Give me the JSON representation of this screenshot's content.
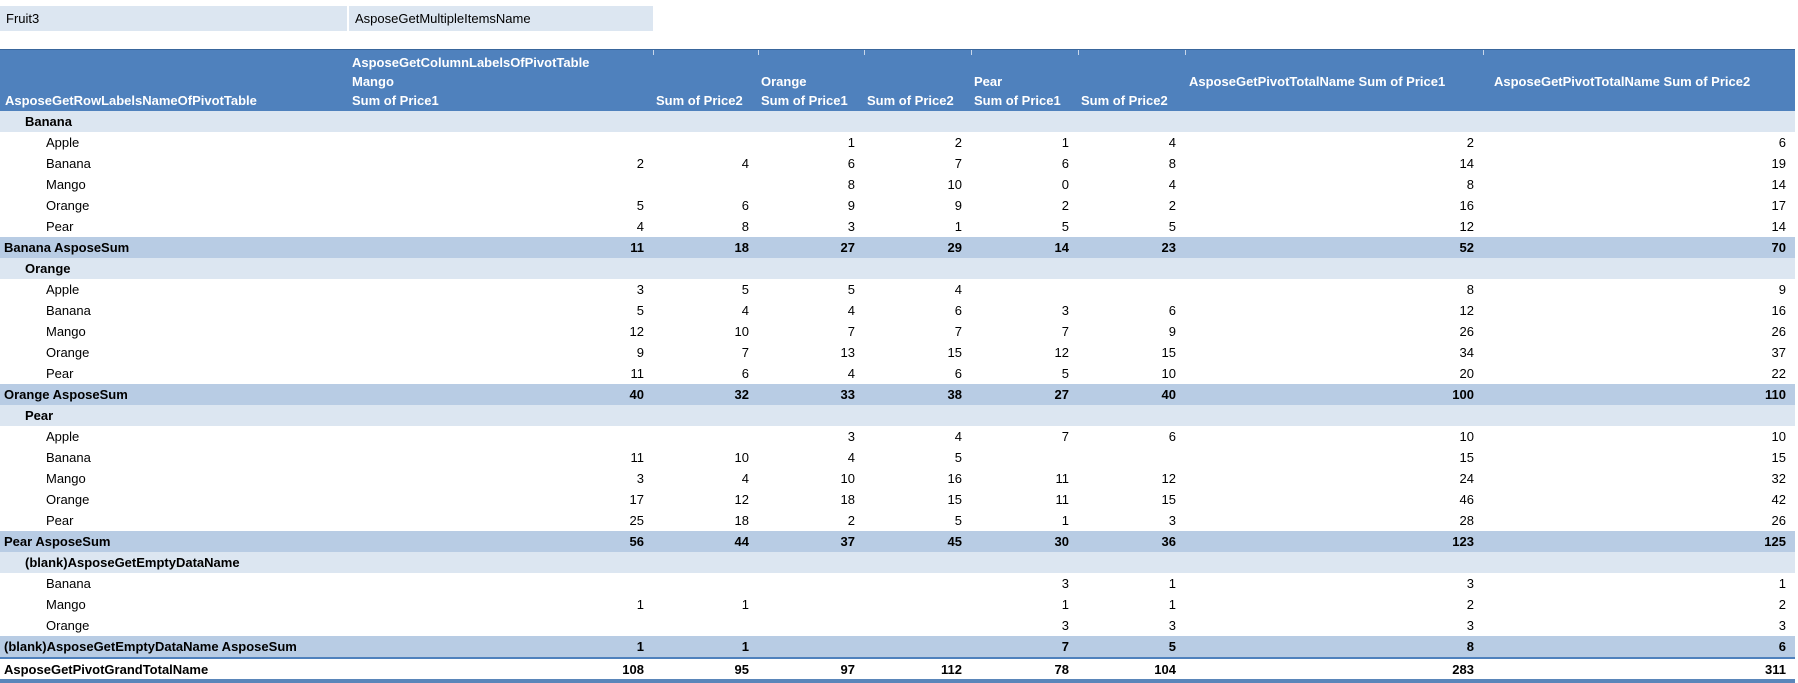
{
  "filter": {
    "field": "Fruit3",
    "value": "AsposeGetMultipleItemsName"
  },
  "header": {
    "column_labels_title": "AsposeGetColumnLabelsOfPivotTable",
    "row_labels_title": "AsposeGetRowLabelsNameOfPivotTable",
    "groups": [
      {
        "label": "Mango"
      },
      {
        "label": "Orange"
      },
      {
        "label": "Pear"
      }
    ],
    "measure1": "Sum of Price1",
    "measure2": "Sum of Price2",
    "total_price1": "AsposeGetPivotTotalName Sum of Price1",
    "total_price2": "AsposeGetPivotTotalName Sum of Price2"
  },
  "colors": {
    "header_bg": "#4f81bd",
    "group_row_bg": "#dce6f1",
    "subtotal_row_bg": "#b8cce4",
    "filter_cell_bg": "#dce6f1",
    "border_blue": "#5a86ba"
  },
  "rows": [
    {
      "type": "group",
      "label": "Banana",
      "values": [
        "",
        "",
        "",
        "",
        "",
        "",
        "",
        ""
      ]
    },
    {
      "type": "item",
      "label": "Apple",
      "values": [
        "",
        "",
        "1",
        "2",
        "1",
        "4",
        "2",
        "6"
      ]
    },
    {
      "type": "item",
      "label": "Banana",
      "values": [
        "2",
        "4",
        "6",
        "7",
        "6",
        "8",
        "14",
        "19"
      ]
    },
    {
      "type": "item",
      "label": "Mango",
      "values": [
        "",
        "",
        "8",
        "10",
        "0",
        "4",
        "8",
        "14"
      ]
    },
    {
      "type": "item",
      "label": "Orange",
      "values": [
        "5",
        "6",
        "9",
        "9",
        "2",
        "2",
        "16",
        "17"
      ]
    },
    {
      "type": "item",
      "label": "Pear",
      "values": [
        "4",
        "8",
        "3",
        "1",
        "5",
        "5",
        "12",
        "14"
      ]
    },
    {
      "type": "subtotal",
      "label": "Banana AsposeSum",
      "values": [
        "11",
        "18",
        "27",
        "29",
        "14",
        "23",
        "52",
        "70"
      ]
    },
    {
      "type": "group",
      "label": "Orange",
      "values": [
        "",
        "",
        "",
        "",
        "",
        "",
        "",
        ""
      ]
    },
    {
      "type": "item",
      "label": "Apple",
      "values": [
        "3",
        "5",
        "5",
        "4",
        "",
        "",
        "8",
        "9"
      ]
    },
    {
      "type": "item",
      "label": "Banana",
      "values": [
        "5",
        "4",
        "4",
        "6",
        "3",
        "6",
        "12",
        "16"
      ]
    },
    {
      "type": "item",
      "label": "Mango",
      "values": [
        "12",
        "10",
        "7",
        "7",
        "7",
        "9",
        "26",
        "26"
      ]
    },
    {
      "type": "item",
      "label": "Orange",
      "values": [
        "9",
        "7",
        "13",
        "15",
        "12",
        "15",
        "34",
        "37"
      ]
    },
    {
      "type": "item",
      "label": "Pear",
      "values": [
        "11",
        "6",
        "4",
        "6",
        "5",
        "10",
        "20",
        "22"
      ]
    },
    {
      "type": "subtotal",
      "label": "Orange AsposeSum",
      "values": [
        "40",
        "32",
        "33",
        "38",
        "27",
        "40",
        "100",
        "110"
      ]
    },
    {
      "type": "group",
      "label": "Pear",
      "values": [
        "",
        "",
        "",
        "",
        "",
        "",
        "",
        ""
      ]
    },
    {
      "type": "item",
      "label": "Apple",
      "values": [
        "",
        "",
        "3",
        "4",
        "7",
        "6",
        "10",
        "10"
      ]
    },
    {
      "type": "item",
      "label": "Banana",
      "values": [
        "11",
        "10",
        "4",
        "5",
        "",
        "",
        "15",
        "15"
      ]
    },
    {
      "type": "item",
      "label": "Mango",
      "values": [
        "3",
        "4",
        "10",
        "16",
        "11",
        "12",
        "24",
        "32"
      ]
    },
    {
      "type": "item",
      "label": "Orange",
      "values": [
        "17",
        "12",
        "18",
        "15",
        "11",
        "15",
        "46",
        "42"
      ]
    },
    {
      "type": "item",
      "label": "Pear",
      "values": [
        "25",
        "18",
        "2",
        "5",
        "1",
        "3",
        "28",
        "26"
      ]
    },
    {
      "type": "subtotal",
      "label": "Pear AsposeSum",
      "values": [
        "56",
        "44",
        "37",
        "45",
        "30",
        "36",
        "123",
        "125"
      ]
    },
    {
      "type": "group",
      "label": "(blank)AsposeGetEmptyDataName",
      "values": [
        "",
        "",
        "",
        "",
        "",
        "",
        "",
        ""
      ]
    },
    {
      "type": "item",
      "label": "Banana",
      "values": [
        "",
        "",
        "",
        "",
        "3",
        "1",
        "3",
        "1"
      ]
    },
    {
      "type": "item",
      "label": "Mango",
      "values": [
        "1",
        "1",
        "",
        "",
        "1",
        "1",
        "2",
        "2"
      ]
    },
    {
      "type": "item",
      "label": "Orange",
      "values": [
        "",
        "",
        "",
        "",
        "3",
        "3",
        "3",
        "3"
      ]
    },
    {
      "type": "subtotal",
      "label": "(blank)AsposeGetEmptyDataName AsposeSum",
      "values": [
        "1",
        "1",
        "",
        "",
        "7",
        "5",
        "8",
        "6"
      ]
    },
    {
      "type": "grandtotal",
      "label": "AsposeGetPivotGrandTotalName",
      "values": [
        "108",
        "95",
        "97",
        "112",
        "78",
        "104",
        "283",
        "311"
      ]
    }
  ]
}
